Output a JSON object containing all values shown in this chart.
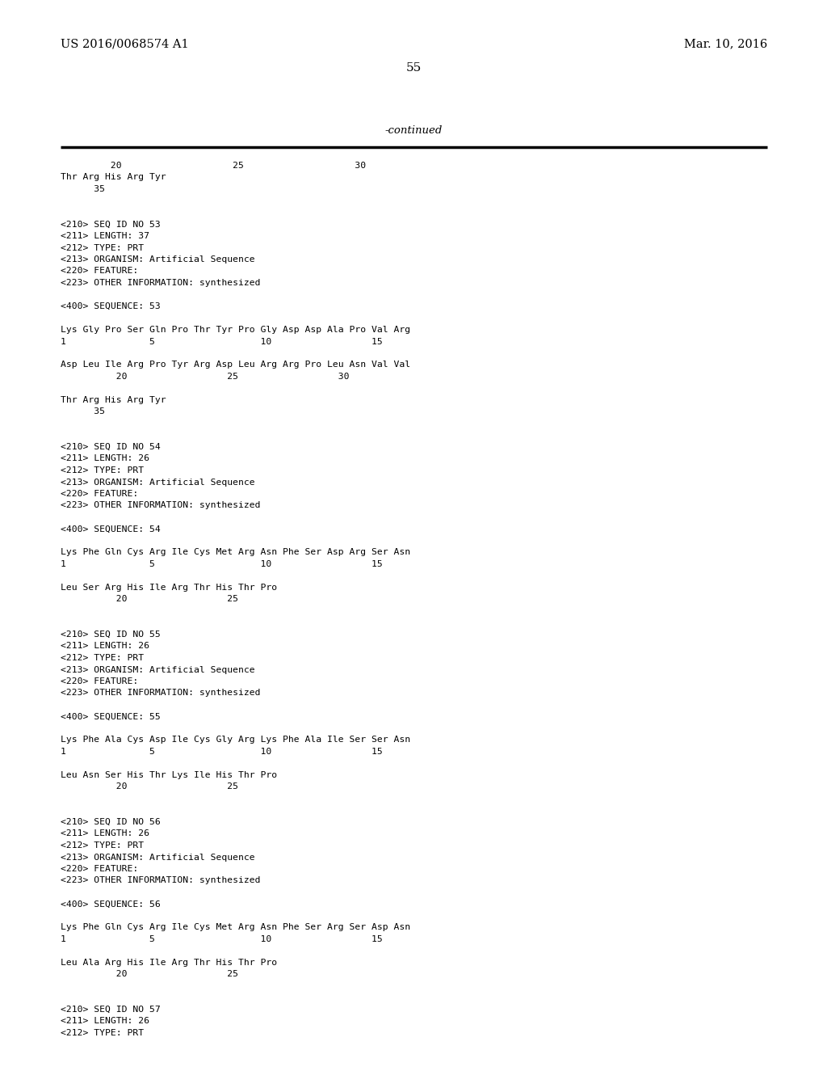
{
  "header_left": "US 2016/0068574 A1",
  "header_right": "Mar. 10, 2016",
  "page_number": "55",
  "continued_label": "-continued",
  "background_color": "#ffffff",
  "text_color": "#000000",
  "content_lines": [
    "         20                    25                    30",
    "Thr Arg His Arg Tyr",
    "      35",
    "",
    "",
    "<210> SEQ ID NO 53",
    "<211> LENGTH: 37",
    "<212> TYPE: PRT",
    "<213> ORGANISM: Artificial Sequence",
    "<220> FEATURE:",
    "<223> OTHER INFORMATION: synthesized",
    "",
    "<400> SEQUENCE: 53",
    "",
    "Lys Gly Pro Ser Gln Pro Thr Tyr Pro Gly Asp Asp Ala Pro Val Arg",
    "1               5                   10                  15",
    "",
    "Asp Leu Ile Arg Pro Tyr Arg Asp Leu Arg Arg Pro Leu Asn Val Val",
    "          20                  25                  30",
    "",
    "Thr Arg His Arg Tyr",
    "      35",
    "",
    "",
    "<210> SEQ ID NO 54",
    "<211> LENGTH: 26",
    "<212> TYPE: PRT",
    "<213> ORGANISM: Artificial Sequence",
    "<220> FEATURE:",
    "<223> OTHER INFORMATION: synthesized",
    "",
    "<400> SEQUENCE: 54",
    "",
    "Lys Phe Gln Cys Arg Ile Cys Met Arg Asn Phe Ser Asp Arg Ser Asn",
    "1               5                   10                  15",
    "",
    "Leu Ser Arg His Ile Arg Thr His Thr Pro",
    "          20                  25",
    "",
    "",
    "<210> SEQ ID NO 55",
    "<211> LENGTH: 26",
    "<212> TYPE: PRT",
    "<213> ORGANISM: Artificial Sequence",
    "<220> FEATURE:",
    "<223> OTHER INFORMATION: synthesized",
    "",
    "<400> SEQUENCE: 55",
    "",
    "Lys Phe Ala Cys Asp Ile Cys Gly Arg Lys Phe Ala Ile Ser Ser Asn",
    "1               5                   10                  15",
    "",
    "Leu Asn Ser His Thr Lys Ile His Thr Pro",
    "          20                  25",
    "",
    "",
    "<210> SEQ ID NO 56",
    "<211> LENGTH: 26",
    "<212> TYPE: PRT",
    "<213> ORGANISM: Artificial Sequence",
    "<220> FEATURE:",
    "<223> OTHER INFORMATION: synthesized",
    "",
    "<400> SEQUENCE: 56",
    "",
    "Lys Phe Gln Cys Arg Ile Cys Met Arg Asn Phe Ser Arg Ser Asp Asn",
    "1               5                   10                  15",
    "",
    "Leu Ala Arg His Ile Arg Thr His Thr Pro",
    "          20                  25",
    "",
    "",
    "<210> SEQ ID NO 57",
    "<211> LENGTH: 26",
    "<212> TYPE: PRT"
  ]
}
